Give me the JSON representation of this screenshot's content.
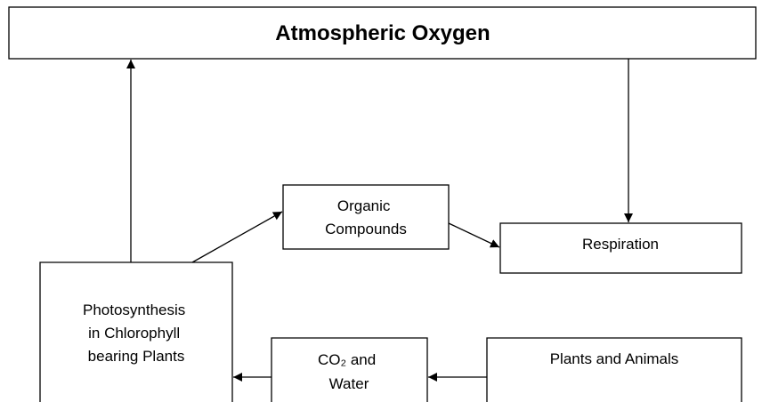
{
  "title": "Atmospheric Oxygen",
  "nodes": [
    {
      "lines": [
        "Organic",
        "Compounds"
      ]
    },
    {
      "lines": [
        "Respiration"
      ]
    },
    {
      "lines": [
        "Photosynthesis",
        "in Chlorophyll",
        "bearing Plants"
      ]
    },
    {
      "lines": [
        "CO₂  and",
        "Water"
      ]
    },
    {
      "lines": [
        "Plants and Animals"
      ]
    }
  ]
}
